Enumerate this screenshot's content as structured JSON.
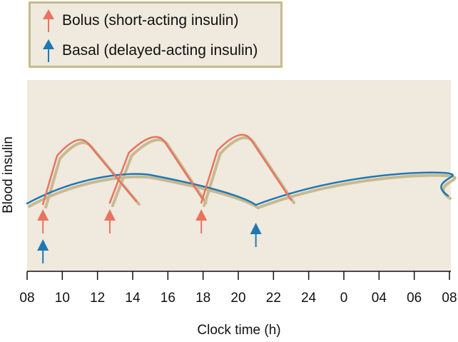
{
  "legend": {
    "bolus_label": "Bolus (short-acting insulin)",
    "basal_label": "Basal (delayed-acting insulin)"
  },
  "colors": {
    "bolus": "#e8735f",
    "basal": "#1f78b4",
    "shadow": "#c9b98f",
    "plot_bg": "#efe9de",
    "legend_border": "#c9b98f"
  },
  "axes": {
    "x_title": "Clock time (h)",
    "y_title": "Blood insulin",
    "x_ticks": [
      "08",
      "10",
      "12",
      "14",
      "16",
      "18",
      "20",
      "22",
      "24",
      "0",
      "04",
      "06",
      "08"
    ]
  },
  "chart_data": {
    "type": "line",
    "x_unit": "clock time (h)",
    "x_ticks": [
      "08",
      "10",
      "12",
      "14",
      "16",
      "18",
      "20",
      "22",
      "24",
      "0",
      "04",
      "06",
      "08"
    ],
    "bolus_injections": [
      {
        "time": 8.9
      },
      {
        "time": 12.7
      },
      {
        "time": 17.9
      }
    ],
    "basal_injections": [
      {
        "time": 8.9
      },
      {
        "time": 21.0
      }
    ],
    "bolus_curves": [
      {
        "start": 8.9,
        "peak_time": 11.1,
        "end": 14.2
      },
      {
        "start": 12.7,
        "peak_time": 15.4,
        "end": 18.0
      },
      {
        "start": 17.9,
        "peak_time": 20.3,
        "end": 23.0
      }
    ],
    "basal_curves": [
      {
        "start": 8.0,
        "peak_time": 15.0,
        "end": 21.0
      },
      {
        "start": 21.0,
        "peak_time": 32.0,
        "end": 38.0
      }
    ]
  }
}
